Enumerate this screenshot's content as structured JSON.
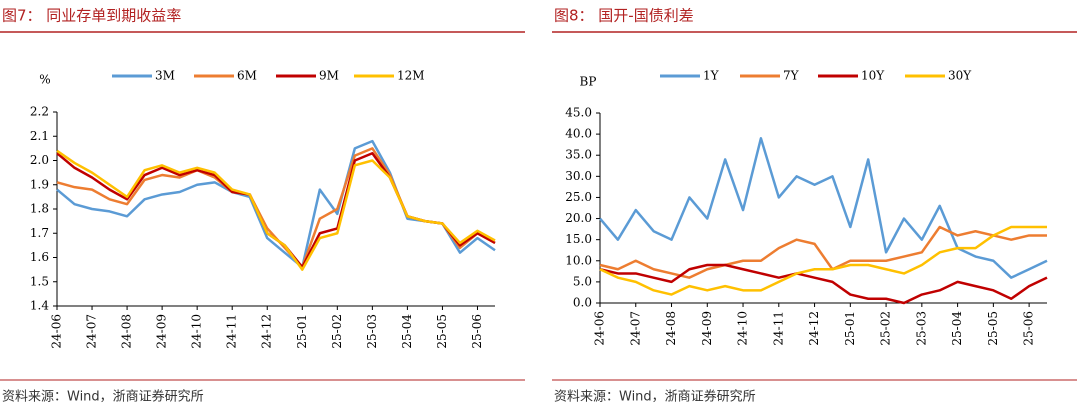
{
  "chart_data": [
    {
      "type": "line",
      "title": "图7：  同业存单到期收益率",
      "y_label": "%",
      "source": "资料来源：Wind，浙商证券研究所",
      "x": [
        0,
        0.5,
        1,
        1.5,
        2,
        2.5,
        3,
        3.5,
        4,
        4.5,
        5,
        5.5,
        6,
        6.5,
        7,
        7.5,
        8,
        8.5,
        9,
        9.5,
        10,
        10.5,
        11,
        11.5,
        12,
        12.5
      ],
      "xlim": [
        0,
        12.5
      ],
      "xticks": [
        {
          "value": 0,
          "label": "24-06"
        },
        {
          "value": 1,
          "label": "24-07"
        },
        {
          "value": 2,
          "label": "24-08"
        },
        {
          "value": 3,
          "label": "24-09"
        },
        {
          "value": 4,
          "label": "24-10"
        },
        {
          "value": 5,
          "label": "24-11"
        },
        {
          "value": 6,
          "label": "24-12"
        },
        {
          "value": 7,
          "label": "25-01"
        },
        {
          "value": 8,
          "label": "25-02"
        },
        {
          "value": 9,
          "label": "25-03"
        },
        {
          "value": 10,
          "label": "25-04"
        },
        {
          "value": 11,
          "label": "25-05"
        },
        {
          "value": 12,
          "label": "25-06"
        }
      ],
      "ylim": [
        1.4,
        2.2
      ],
      "yticks": [
        1.4,
        1.5,
        1.6,
        1.7,
        1.8,
        1.9,
        {
          "value": 2,
          "label": "2.0"
        },
        2.1,
        2.2
      ],
      "series": [
        {
          "name": "3M",
          "color": "#5b9bd5",
          "values": [
            1.88,
            1.82,
            1.8,
            1.79,
            1.77,
            1.84,
            1.86,
            1.87,
            1.9,
            1.91,
            1.87,
            1.85,
            1.68,
            1.62,
            1.56,
            1.88,
            1.78,
            2.05,
            2.08,
            1.95,
            1.76,
            1.75,
            1.74,
            1.62,
            1.68,
            1.63
          ]
        },
        {
          "name": "6M",
          "color": "#ed7d31",
          "values": [
            1.91,
            1.89,
            1.88,
            1.84,
            1.82,
            1.92,
            1.94,
            1.93,
            1.96,
            1.93,
            1.87,
            1.86,
            1.72,
            1.64,
            1.56,
            1.76,
            1.8,
            2.02,
            2.05,
            1.94,
            1.77,
            1.75,
            1.74,
            1.64,
            1.7,
            1.66
          ]
        },
        {
          "name": "9M",
          "color": "#c00000",
          "values": [
            2.03,
            1.97,
            1.93,
            1.88,
            1.84,
            1.94,
            1.97,
            1.94,
            1.96,
            1.94,
            1.87,
            1.86,
            1.7,
            1.65,
            1.56,
            1.7,
            1.72,
            2.0,
            2.03,
            1.93,
            1.77,
            1.75,
            1.74,
            1.65,
            1.7,
            1.66
          ]
        },
        {
          "name": "12M",
          "color": "#ffc000",
          "values": [
            2.04,
            1.99,
            1.95,
            1.9,
            1.85,
            1.96,
            1.98,
            1.95,
            1.97,
            1.95,
            1.88,
            1.86,
            1.7,
            1.65,
            1.55,
            1.68,
            1.7,
            1.98,
            2.0,
            1.93,
            1.77,
            1.75,
            1.74,
            1.66,
            1.71,
            1.67
          ]
        }
      ]
    },
    {
      "type": "line",
      "title": "图8：  国开-国债利差",
      "y_label": "BP",
      "source": "资料来源：Wind，浙商证券研究所",
      "x": [
        0,
        0.5,
        1,
        1.5,
        2,
        2.5,
        3,
        3.5,
        4,
        4.5,
        5,
        5.5,
        6,
        6.5,
        7,
        7.5,
        8,
        8.5,
        9,
        9.5,
        10,
        10.5,
        11,
        11.5,
        12,
        12.5
      ],
      "xlim": [
        0,
        12.5
      ],
      "xticks": [
        {
          "value": 0,
          "label": "24-06"
        },
        {
          "value": 1,
          "label": "24-07"
        },
        {
          "value": 2,
          "label": "24-08"
        },
        {
          "value": 3,
          "label": "24-09"
        },
        {
          "value": 4,
          "label": "24-10"
        },
        {
          "value": 5,
          "label": "24-11"
        },
        {
          "value": 6,
          "label": "24-12"
        },
        {
          "value": 7,
          "label": "25-01"
        },
        {
          "value": 8,
          "label": "25-02"
        },
        {
          "value": 9,
          "label": "25-03"
        },
        {
          "value": 10,
          "label": "25-04"
        },
        {
          "value": 11,
          "label": "25-05"
        },
        {
          "value": 12,
          "label": "25-06"
        }
      ],
      "ylim": [
        0,
        45
      ],
      "yticks": [
        {
          "value": 0,
          "label": "0.0"
        },
        {
          "value": 5,
          "label": "5.0"
        },
        {
          "value": 10,
          "label": "10.0"
        },
        {
          "value": 15,
          "label": "15.0"
        },
        {
          "value": 20,
          "label": "20.0"
        },
        {
          "value": 25,
          "label": "25.0"
        },
        {
          "value": 30,
          "label": "30.0"
        },
        {
          "value": 35,
          "label": "35.0"
        },
        {
          "value": 40,
          "label": "40.0"
        },
        {
          "value": 45,
          "label": "45.0"
        }
      ],
      "series": [
        {
          "name": "1Y",
          "color": "#5b9bd5",
          "values": [
            20,
            15,
            22,
            17,
            15,
            25,
            20,
            34,
            22,
            39,
            25,
            30,
            28,
            30,
            18,
            34,
            12,
            20,
            15,
            23,
            13,
            11,
            10,
            6,
            8,
            10
          ]
        },
        {
          "name": "7Y",
          "color": "#ed7d31",
          "values": [
            9,
            8,
            10,
            8,
            7,
            6,
            8,
            9,
            10,
            10,
            13,
            15,
            14,
            8,
            10,
            10,
            10,
            11,
            12,
            18,
            16,
            17,
            16,
            15,
            16,
            16
          ]
        },
        {
          "name": "10Y",
          "color": "#c00000",
          "values": [
            8,
            7,
            7,
            6,
            5,
            8,
            9,
            9,
            8,
            7,
            6,
            7,
            6,
            5,
            2,
            1,
            1,
            0,
            2,
            3,
            5,
            4,
            3,
            1,
            4,
            6
          ]
        },
        {
          "name": "30Y",
          "color": "#ffc000",
          "values": [
            8,
            6,
            5,
            3,
            2,
            4,
            3,
            4,
            3,
            3,
            5,
            7,
            8,
            8,
            9,
            9,
            8,
            7,
            9,
            12,
            13,
            13,
            16,
            18,
            18,
            18
          ]
        }
      ]
    }
  ]
}
